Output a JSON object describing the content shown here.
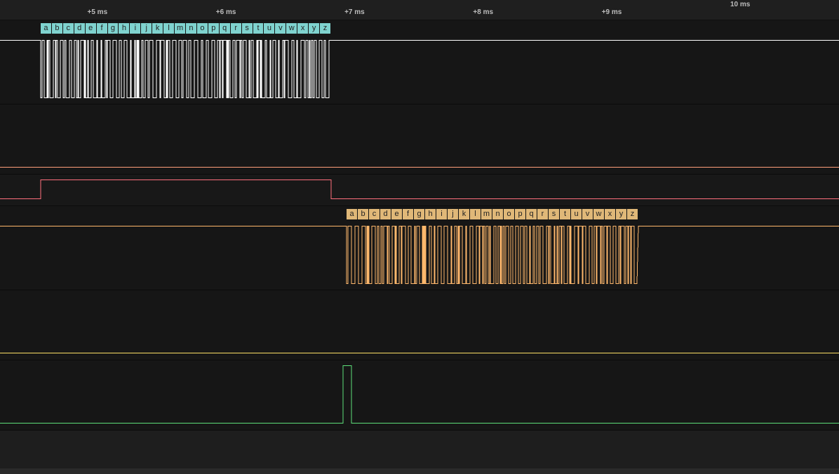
{
  "timeline": {
    "ticks": [
      {
        "label": "+5 ms",
        "ms": 5,
        "major": false
      },
      {
        "label": "+6 ms",
        "ms": 6,
        "major": false
      },
      {
        "label": "+7 ms",
        "ms": 7,
        "major": false
      },
      {
        "label": "+8 ms",
        "ms": 8,
        "major": false
      },
      {
        "label": "+9 ms",
        "ms": 9,
        "major": false
      },
      {
        "label": "10 ms",
        "ms": 10,
        "major": true
      }
    ]
  },
  "channels": [
    {
      "id": "ch0",
      "kind": "serial",
      "color": "#ffffff",
      "annotation_color": "#7fd3cf",
      "start_ms": 4.62,
      "end_ms": 6.88,
      "symbols": [
        "a",
        "b",
        "c",
        "d",
        "e",
        "f",
        "g",
        "h",
        "i",
        "j",
        "k",
        "l",
        "m",
        "n",
        "o",
        "p",
        "q",
        "r",
        "s",
        "t",
        "u",
        "v",
        "w",
        "x",
        "y",
        "z"
      ]
    },
    {
      "id": "ch1",
      "kind": "idle-high",
      "color": "#ff9e7a"
    },
    {
      "id": "ch2",
      "kind": "pulse",
      "color": "#ff6f7d",
      "pulse_start_ms": 4.62,
      "pulse_end_ms": 6.88
    },
    {
      "id": "ch3",
      "kind": "serial",
      "color": "#ffb86c",
      "annotation_color": "#e0b878",
      "start_ms": 7.0,
      "end_ms": 9.27,
      "symbols": [
        "a",
        "b",
        "c",
        "d",
        "e",
        "f",
        "g",
        "h",
        "i",
        "j",
        "k",
        "l",
        "m",
        "n",
        "o",
        "p",
        "q",
        "r",
        "s",
        "t",
        "u",
        "v",
        "w",
        "x",
        "y",
        "z"
      ]
    },
    {
      "id": "ch4",
      "kind": "idle-high",
      "color": "#ffe066"
    },
    {
      "id": "ch5",
      "kind": "pulse",
      "color": "#5ee07a",
      "pulse_start_ms": 6.97,
      "pulse_end_ms": 7.04
    }
  ]
}
